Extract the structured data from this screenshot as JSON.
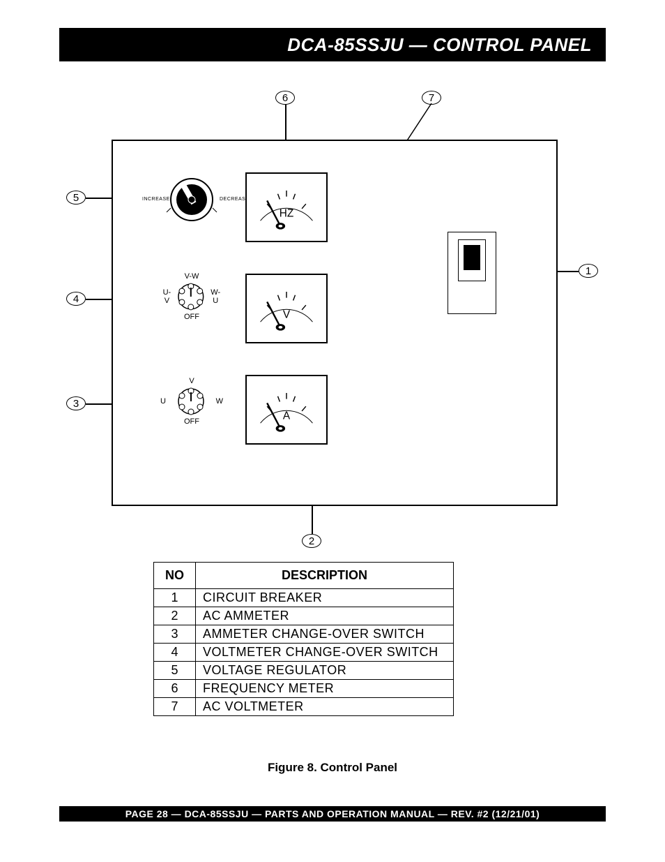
{
  "header": {
    "title": "DCA-85SSJU  — CONTROL PANEL"
  },
  "footer": {
    "text": "PAGE 28 — DCA-85SSJU — PARTS AND OPERATION MANUAL — REV. #2  (12/21/01)"
  },
  "figure_caption": "Figure 8. Control Panel",
  "callouts": {
    "c1": "1",
    "c2": "2",
    "c3": "3",
    "c4": "4",
    "c5": "5",
    "c6": "6",
    "c7": "7"
  },
  "gauges": {
    "hz": {
      "unit": "HZ"
    },
    "v": {
      "unit": "V"
    },
    "a": {
      "unit": "A"
    }
  },
  "switch4": {
    "top": "V-W",
    "left": "U-V",
    "right": "W-U",
    "bottom": "OFF"
  },
  "switch3": {
    "top": "V",
    "left": "U",
    "right": "W",
    "bottom": "OFF"
  },
  "knob": {
    "left_label": "INCREASE",
    "right_label": "DECREASE"
  },
  "table": {
    "headers": {
      "no": "NO",
      "desc": "DESCRIPTION"
    },
    "rows": [
      {
        "no": "1",
        "desc": "CIRCUIT BREAKER"
      },
      {
        "no": "2",
        "desc": "AC AMMETER"
      },
      {
        "no": "3",
        "desc": "AMMETER CHANGE-OVER SWITCH"
      },
      {
        "no": "4",
        "desc": "VOLTMETER CHANGE-OVER SWITCH"
      },
      {
        "no": "5",
        "desc": "VOLTAGE REGULATOR"
      },
      {
        "no": "6",
        "desc": "FREQUENCY METER"
      },
      {
        "no": "7",
        "desc": "AC VOLTMETER"
      }
    ]
  },
  "colors": {
    "black": "#000000",
    "white": "#ffffff"
  }
}
